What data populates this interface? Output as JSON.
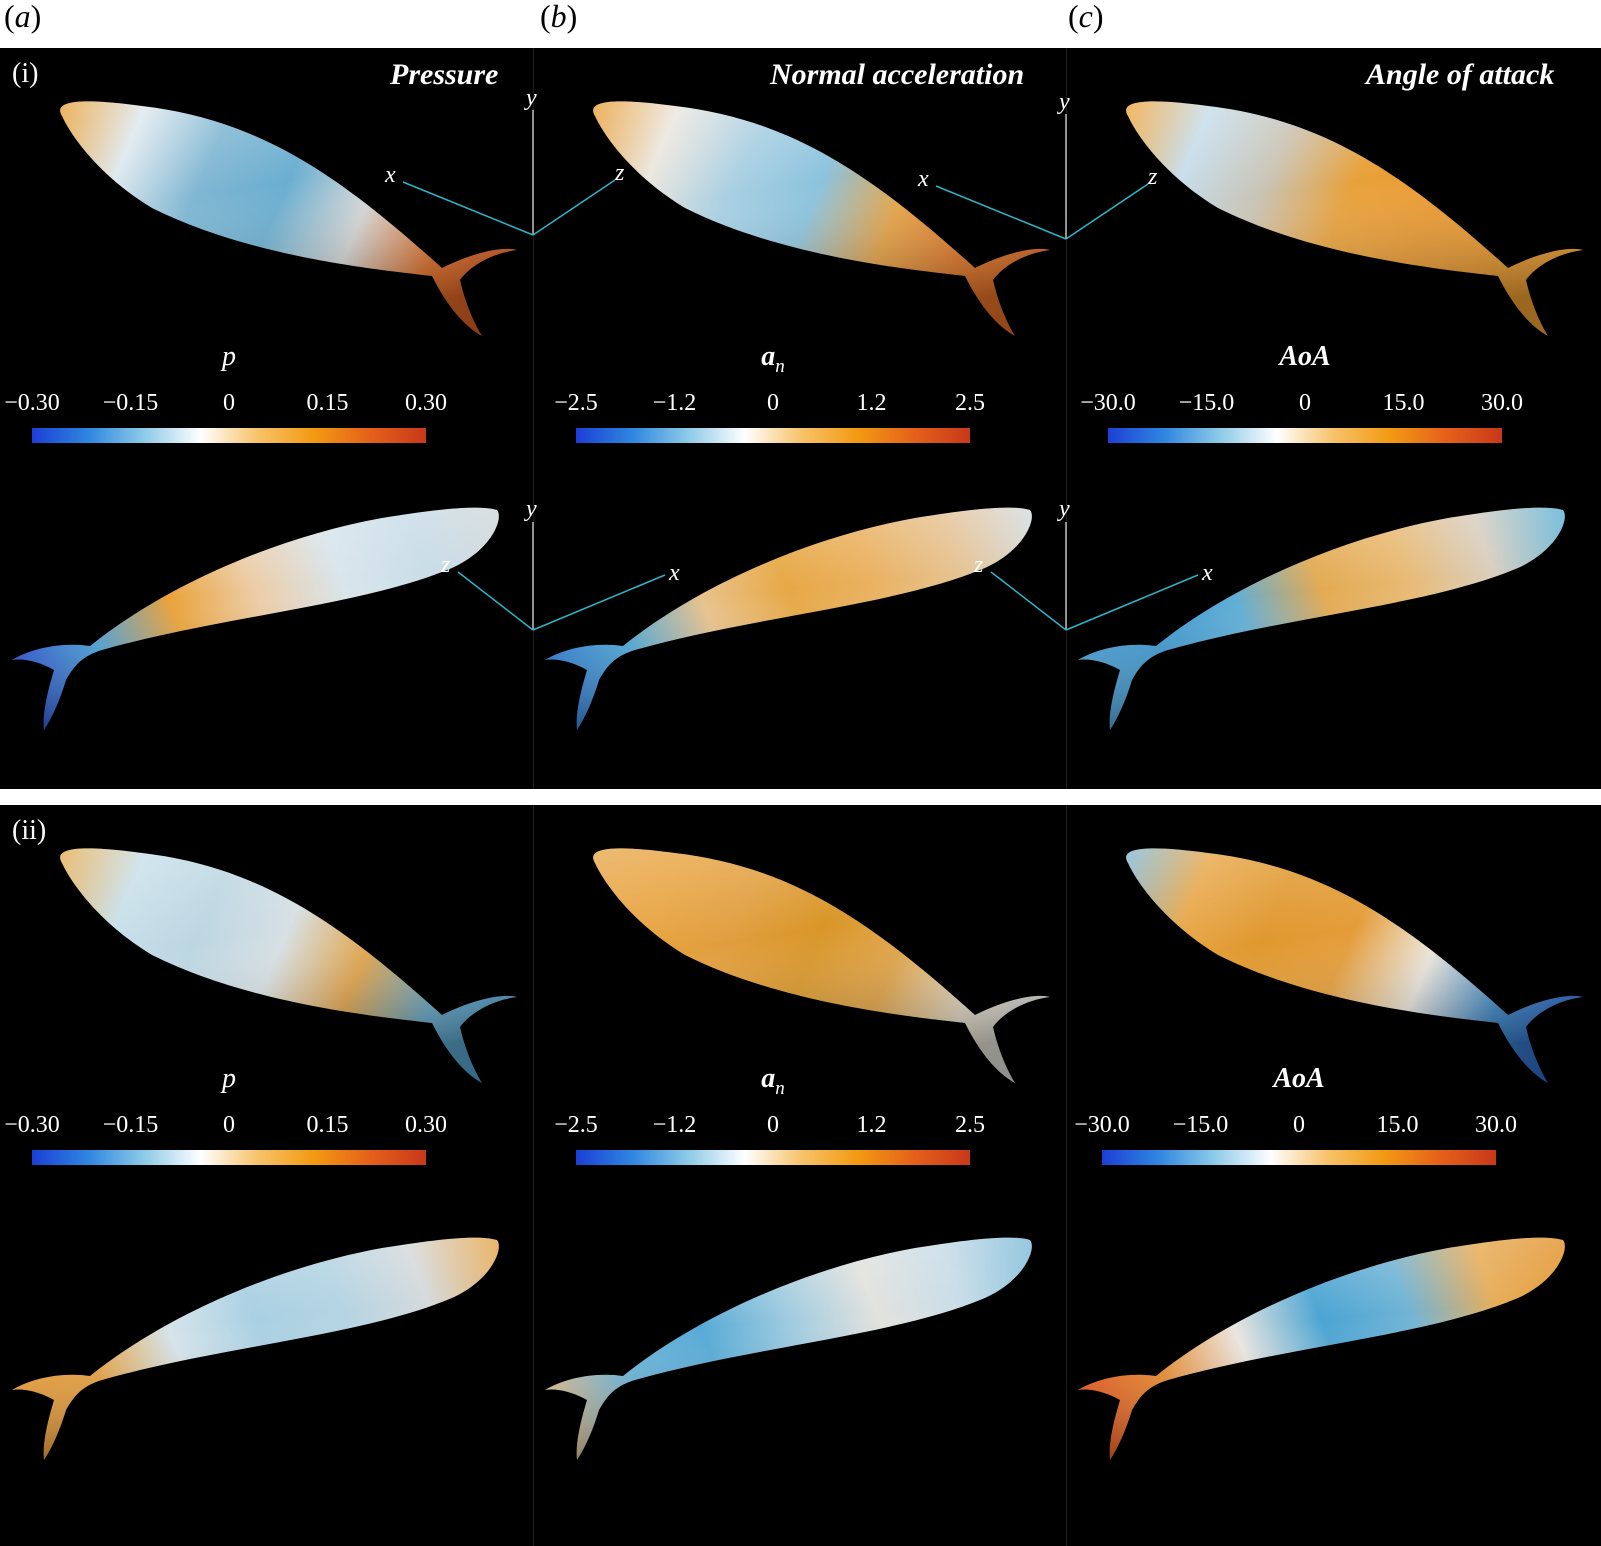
{
  "column_labels": [
    "(a)",
    "(b)",
    "(c)"
  ],
  "rows": [
    {
      "label": "(i)",
      "titles": [
        "Pressure",
        "Normal acceleration",
        "Angle of attack"
      ],
      "colorbars": [
        {
          "var": "p",
          "sub": "",
          "ticks": [
            "−0.30",
            "−0.15",
            "0",
            "0.15",
            "0.30"
          ],
          "bold": false
        },
        {
          "var": "a",
          "sub": "n",
          "ticks": [
            "−2.5",
            "−1.2",
            "0",
            "1.2",
            "2.5"
          ],
          "bold": true
        },
        {
          "var": "AoA",
          "sub": "",
          "ticks": [
            "−30.0",
            "−15.0",
            "0",
            "15.0",
            "30.0"
          ],
          "bold": true
        }
      ],
      "axes_top": [
        {
          "x": "x",
          "y": "y",
          "z": "z"
        },
        {
          "x": "x",
          "y": "y",
          "z": "z"
        }
      ],
      "axes_bottom": [
        {
          "x": "x",
          "y": "y",
          "z": "z"
        },
        {
          "x": "x",
          "y": "y",
          "z": "z"
        }
      ]
    },
    {
      "label": "(ii)",
      "titles": [
        "",
        "",
        ""
      ],
      "colorbars": [
        {
          "var": "p",
          "sub": "",
          "ticks": [
            "−0.30",
            "−0.15",
            "0",
            "0.15",
            "0.30"
          ],
          "bold": false
        },
        {
          "var": "a",
          "sub": "n",
          "ticks": [
            "−2.5",
            "−1.2",
            "0",
            "1.2",
            "2.5"
          ],
          "bold": true
        },
        {
          "var": "AoA",
          "sub": "",
          "ticks": [
            "−30.0",
            "−15.0",
            "0",
            "15.0",
            "30.0"
          ],
          "bold": true
        }
      ]
    }
  ],
  "colormap": {
    "stops": [
      "#1c3fd6",
      "#2f86e0",
      "#8ecbe8",
      "#ffffff",
      "#f7c36a",
      "#f29a13",
      "#e5611a",
      "#c8381a"
    ]
  },
  "axis_color": "#2fb4c8",
  "fish_colors": {
    "row1_top": [
      [
        "#e89a2a",
        "#dde8ee",
        "#7fb6d2",
        "#6aaed0",
        "#d7d9d8",
        "#e8742a",
        "#d85a22"
      ],
      [
        "#e8982c",
        "#eae6de",
        "#a9cfe2",
        "#8bc3dd",
        "#e8a444",
        "#ea7a28",
        "#e06a24"
      ],
      [
        "#f0a030",
        "#c4dcea",
        "#c9c3b4",
        "#e8a13a",
        "#ec9a30",
        "#ee9c2e",
        "#ef9f34"
      ]
    ],
    "row1_bottom": [
      [
        "#2a4fcc",
        "#4aa0d8",
        "#eaa23a",
        "#eccda8",
        "#d9e5ec",
        "#c9dde8",
        "#d4dadc"
      ],
      [
        "#2f77cf",
        "#4ea8d6",
        "#e9c28c",
        "#e7a845",
        "#eab262",
        "#e6c496",
        "#d7dde0"
      ],
      [
        "#4a9ccf",
        "#3e97cf",
        "#5faed6",
        "#e3aa52",
        "#e8ba74",
        "#d9cfc2",
        "#6ab7d8"
      ]
    ],
    "row2_top": [
      [
        "#e6a848",
        "#c7dfe9",
        "#bcd6e2",
        "#d7e0e4",
        "#e2a448",
        "#6aaed0",
        "#4d9fcc"
      ],
      [
        "#e7a445",
        "#e8a23c",
        "#e19e3e",
        "#d99628",
        "#e2a446",
        "#eee3cf",
        "#d8ddde"
      ],
      [
        "#7ab6d6",
        "#e7a544",
        "#e0982e",
        "#e49c38",
        "#eee9df",
        "#3e8ccc",
        "#2c63c8"
      ]
    ],
    "row2_bottom": [
      [
        "#e79b38",
        "#e6a140",
        "#d5e4eb",
        "#a9d0e3",
        "#b4d4e3",
        "#d6dadc",
        "#e7ad5a"
      ],
      [
        "#e0ba8a",
        "#6ab4d8",
        "#57aad6",
        "#9fcbe0",
        "#e2e2de",
        "#c9dde8",
        "#88c0dc"
      ],
      [
        "#e5531e",
        "#e88a2e",
        "#eae6e0",
        "#4ba4d2",
        "#70b4d6",
        "#e7ae5a",
        "#e49a3a"
      ]
    ]
  }
}
